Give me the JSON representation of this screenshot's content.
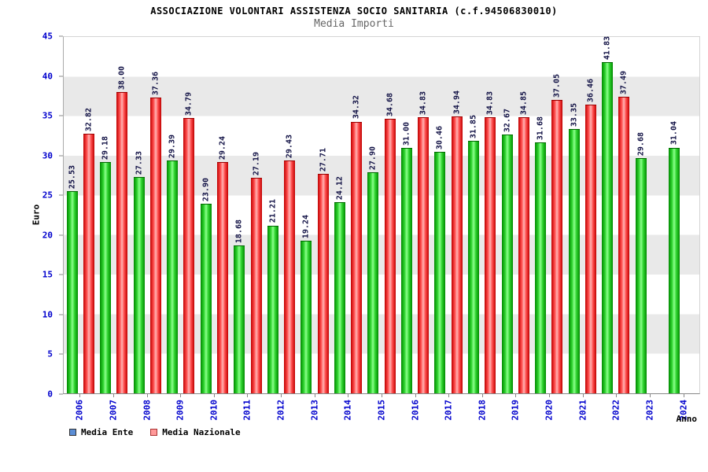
{
  "title": "ASSOCIAZIONE VOLONTARI ASSISTENZA SOCIO SANITARIA (c.f.94506830010)",
  "subtitle": "Media Importi",
  "axes": {
    "y_label": "Euro",
    "x_label": "Anno",
    "y_ticks": [
      0,
      5,
      10,
      15,
      20,
      25,
      30,
      35,
      40,
      45
    ]
  },
  "legend": {
    "ente": "Media Ente",
    "nazionale": "Media Nazionale"
  },
  "colors": {
    "axis_label_blue": "#0000cd",
    "bar_ente_green": "#00a000",
    "bar_nazionale_pink": "#ff9999",
    "band_gray": "#e9e9e9",
    "value_label_navy": "#101044",
    "legend_ente_swatch": "#5b8ed6",
    "legend_nazionale_swatch": "#ff9999",
    "subtitle_gray": "#666666"
  },
  "chart_data": {
    "type": "bar",
    "title": "ASSOCIAZIONE VOLONTARI ASSISTENZA SOCIO SANITARIA (c.f.94506830010)",
    "subtitle": "Media Importi",
    "xlabel": "Anno",
    "ylabel": "Euro",
    "ylim": [
      0,
      45
    ],
    "grid": "alternating-horizontal-bands",
    "legend_position": "bottom-left",
    "value_labels": "rotated-90-above-bars",
    "categories": [
      "2006",
      "2007",
      "2008",
      "2009",
      "2010",
      "2011",
      "2012",
      "2013",
      "2014",
      "2015",
      "2016",
      "2017",
      "2018",
      "2019",
      "2020",
      "2021",
      "2022",
      "2023",
      "2024"
    ],
    "series": [
      {
        "name": "Media Ente",
        "color": "#00a000",
        "values": [
          25.53,
          29.18,
          27.33,
          29.39,
          23.9,
          18.68,
          21.21,
          19.24,
          24.12,
          27.9,
          31.0,
          30.46,
          31.85,
          32.67,
          31.68,
          33.35,
          41.83,
          29.68,
          31.04
        ]
      },
      {
        "name": "Media Nazionale",
        "color": "#ff9999",
        "values": [
          32.82,
          38.0,
          37.36,
          34.79,
          29.24,
          27.19,
          29.43,
          27.71,
          34.32,
          34.68,
          34.83,
          34.94,
          34.83,
          34.85,
          37.05,
          36.46,
          37.49,
          null,
          null
        ]
      }
    ]
  }
}
